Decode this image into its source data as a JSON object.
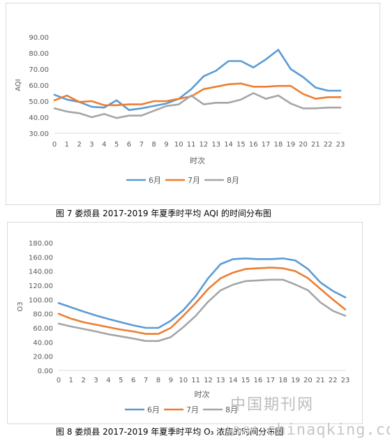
{
  "chart_data": [
    {
      "type": "line",
      "categories": [
        "0",
        "1",
        "2",
        "3",
        "4",
        "5",
        "6",
        "7",
        "8",
        "9",
        "10",
        "11",
        "12",
        "13",
        "14",
        "15",
        "16",
        "17",
        "18",
        "19",
        "20",
        "21",
        "22",
        "23"
      ],
      "ylim": [
        30,
        90
      ],
      "yticks": [
        "30.00",
        "40.00",
        "50.00",
        "60.00",
        "70.00",
        "80.00",
        "90.00"
      ],
      "xlabel": "时次",
      "ylabel": "AQI",
      "legend_position": "bottom",
      "grid": false,
      "series": [
        {
          "name": "6月",
          "color": "#5b9bd5",
          "values": [
            54,
            51,
            49.5,
            46.5,
            46,
            50.5,
            44.5,
            45.5,
            47,
            48.5,
            51.5,
            57.5,
            65.5,
            69,
            75,
            75,
            71,
            76,
            82,
            70,
            65,
            58.5,
            56.5,
            56.5
          ]
        },
        {
          "name": "7月",
          "color": "#ed7d31",
          "values": [
            50.5,
            53.5,
            49.5,
            50,
            47.5,
            47.5,
            48,
            48,
            50,
            50,
            51.5,
            53,
            57.5,
            59,
            60.5,
            61,
            59,
            59,
            59.5,
            59.5,
            54.5,
            51.5,
            52.5,
            52.5
          ]
        },
        {
          "name": "8月",
          "color": "#a5a5a5",
          "values": [
            45.5,
            43.5,
            42.5,
            40,
            42,
            39.5,
            41,
            41,
            44,
            47,
            48,
            53.5,
            48,
            49,
            49,
            51,
            55,
            51.5,
            53.5,
            48.5,
            45.5,
            45.5,
            46,
            46
          ]
        }
      ]
    },
    {
      "type": "line",
      "categories": [
        "0",
        "1",
        "2",
        "3",
        "4",
        "5",
        "6",
        "7",
        "8",
        "9",
        "10",
        "11",
        "12",
        "13",
        "14",
        "15",
        "16",
        "17",
        "18",
        "19",
        "20",
        "21",
        "22",
        "23"
      ],
      "ylim": [
        0,
        180
      ],
      "yticks": [
        "0.00",
        "20.00",
        "40.00",
        "60.00",
        "80.00",
        "100.00",
        "120.00",
        "140.00",
        "160.00",
        "180.00"
      ],
      "xlabel": "时次",
      "ylabel": "O3",
      "legend_position": "bottom",
      "grid": false,
      "series": [
        {
          "name": "6月",
          "color": "#5b9bd5",
          "values": [
            95,
            89,
            83,
            77.5,
            72.5,
            68,
            63.5,
            60,
            60,
            70,
            85,
            105,
            130,
            150,
            157,
            158,
            157,
            157,
            158,
            155,
            143,
            124,
            112,
            103
          ]
        },
        {
          "name": "7月",
          "color": "#ed7d31",
          "values": [
            80,
            73,
            68,
            64.5,
            61,
            57.5,
            55,
            51.5,
            51.5,
            60,
            77,
            95,
            115,
            130,
            138,
            143,
            144,
            145,
            144,
            140,
            130,
            115,
            100,
            86
          ]
        },
        {
          "name": "8月",
          "color": "#a5a5a5",
          "values": [
            66,
            62,
            58.5,
            55,
            51,
            48,
            45,
            41.5,
            41.5,
            47,
            61,
            77,
            97,
            113,
            121,
            126,
            127,
            128,
            128,
            121,
            113,
            96,
            84,
            77
          ]
        }
      ]
    }
  ],
  "captions": {
    "fig7": "图 7   娄烦县 2017-2019 年夏季时平均 AQI 的时间分布图",
    "fig8": "图 8   娄烦县 2017-2019 年夏季时平均 O₃ 浓度的时间分布图"
  },
  "watermark": {
    "line1": "中国期刊网",
    "line2": "www.chinaqking.com"
  }
}
